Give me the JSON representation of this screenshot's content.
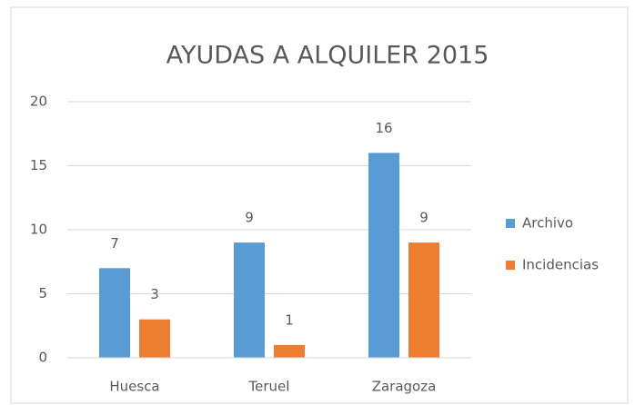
{
  "chart_data": {
    "type": "bar",
    "title": "AYUDAS A ALQUILER 2015",
    "categories": [
      "Huesca",
      "Teruel",
      "Zaragoza"
    ],
    "series": [
      {
        "name": "Archivo",
        "color": "#5b9bd5",
        "values": [
          7,
          9,
          16
        ]
      },
      {
        "name": "Incidencias",
        "color": "#ed7d31",
        "values": [
          3,
          1,
          9
        ]
      }
    ],
    "ylim": [
      0,
      20
    ],
    "yticks": [
      0,
      5,
      10,
      15,
      20
    ],
    "grid": true,
    "legend": "right"
  }
}
